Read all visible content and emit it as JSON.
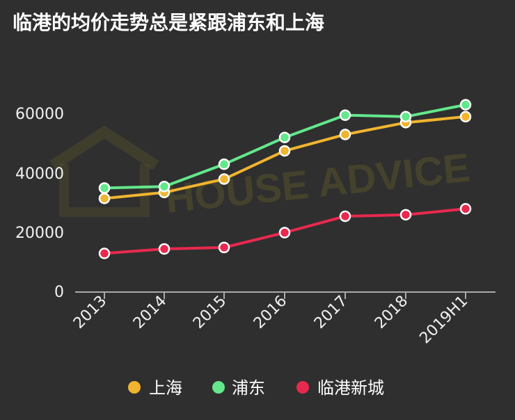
{
  "chart_data": {
    "type": "line",
    "title": "临港的均价走势总是紧跟浦东和上海",
    "categories": [
      "2013",
      "2014",
      "2015",
      "2016",
      "2017",
      "2018",
      "2019H1"
    ],
    "series": [
      {
        "name": "上海",
        "color": "#f0b42f",
        "values": [
          31500,
          33500,
          38000,
          47500,
          53000,
          57000,
          59000
        ]
      },
      {
        "name": "浦东",
        "color": "#63e78b",
        "values": [
          35000,
          35500,
          43000,
          52000,
          59500,
          59000,
          63000
        ]
      },
      {
        "name": "临港新城",
        "color": "#e8294e",
        "values": [
          13000,
          14500,
          15000,
          20000,
          25500,
          26000,
          28000
        ]
      }
    ],
    "yticks": [
      0,
      20000,
      40000,
      60000
    ],
    "ylim": [
      0,
      70000
    ],
    "xlabel": "",
    "ylabel": ""
  },
  "watermark": {
    "primary": "HOUSE ADVICE"
  }
}
